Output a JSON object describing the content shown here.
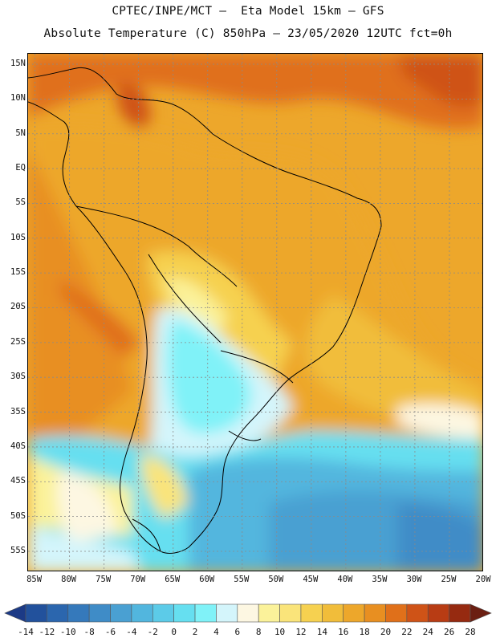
{
  "header": {
    "line1": "CPTEC/INPE/MCT –  Eta Model 15km – GFS",
    "line2": "Absolute Temperature (C) 850hPa – 23/05/2020 12UTC fct=0h"
  },
  "map": {
    "lat_labels": [
      "15N",
      "10N",
      "5N",
      "EQ",
      "5S",
      "10S",
      "15S",
      "20S",
      "25S",
      "30S",
      "35S",
      "40S",
      "45S",
      "50S",
      "55S"
    ],
    "lon_labels": [
      "85W",
      "80W",
      "75W",
      "70W",
      "65W",
      "60W",
      "55W",
      "50W",
      "45W",
      "40W",
      "35W",
      "30W",
      "25W",
      "20W"
    ],
    "lat_values": [
      15,
      10,
      5,
      0,
      -5,
      -10,
      -15,
      -20,
      -25,
      -30,
      -35,
      -40,
      -45,
      -50,
      -55
    ],
    "lon_values": [
      -85,
      -80,
      -75,
      -70,
      -65,
      -60,
      -55,
      -50,
      -45,
      -40,
      -35,
      -30,
      -25,
      -20
    ],
    "lat_range": [
      -58,
      16.5
    ],
    "lon_range": [
      -86,
      -20
    ],
    "grid": true,
    "field": "temperature 850hPa (C)"
  },
  "colorbar": {
    "labels": [
      "-14",
      "-12",
      "-10",
      "-8",
      "-6",
      "-4",
      "-2",
      "0",
      "2",
      "4",
      "6",
      "8",
      "10",
      "12",
      "14",
      "16",
      "18",
      "20",
      "22",
      "24",
      "26",
      "28"
    ],
    "colors": [
      "#1c3a86",
      "#22519c",
      "#2b66ae",
      "#3579bb",
      "#3f8cc7",
      "#4aa0d2",
      "#52b6de",
      "#5ccbe8",
      "#66dff0",
      "#80f2f8",
      "#d4f5fb",
      "#fdf7e2",
      "#fbf29a",
      "#fae47a",
      "#f6d150",
      "#f1bd3a",
      "#eda72b",
      "#e88f21",
      "#e0701a",
      "#cf5317",
      "#b83c14",
      "#962a10",
      "#6b1f12"
    ]
  }
}
